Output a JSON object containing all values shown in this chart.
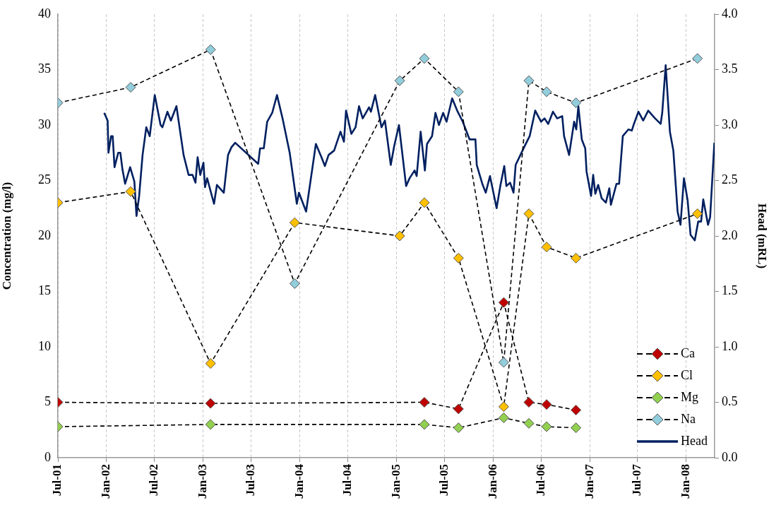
{
  "chart_data": {
    "type": "line",
    "xlabel": null,
    "ylabel": "Concentration (mg/l)",
    "y2label": "Head (mRL)",
    "xlim": [
      "2001-07-01",
      "2008-04-17"
    ],
    "xticks": [
      {
        "value": "2001-07-01",
        "label": "Jul-01"
      },
      {
        "value": "2002-01-01",
        "label": "Jan-02"
      },
      {
        "value": "2002-07-01",
        "label": "Jul-02"
      },
      {
        "value": "2003-01-01",
        "label": "Jan-03"
      },
      {
        "value": "2003-07-01",
        "label": "Jul-03"
      },
      {
        "value": "2004-01-01",
        "label": "Jan-04"
      },
      {
        "value": "2004-07-01",
        "label": "Jul-04"
      },
      {
        "value": "2005-01-01",
        "label": "Jan-05"
      },
      {
        "value": "2005-07-01",
        "label": "Jul-05"
      },
      {
        "value": "2006-01-01",
        "label": "Jan-06"
      },
      {
        "value": "2006-07-01",
        "label": "Jul-06"
      },
      {
        "value": "2007-01-01",
        "label": "Jan-07"
      },
      {
        "value": "2007-07-01",
        "label": "Jul-07"
      },
      {
        "value": "2008-01-01",
        "label": "Jan-08"
      }
    ],
    "ylim": [
      0,
      40
    ],
    "yticks": [
      0,
      5,
      10,
      15,
      20,
      25,
      30,
      35,
      40
    ],
    "y2lim": [
      0,
      4
    ],
    "y2ticks": [
      {
        "value": 0,
        "label": "0.0"
      },
      {
        "value": 0.5,
        "label": "0.5"
      },
      {
        "value": 1,
        "label": "1.0"
      },
      {
        "value": 1.5,
        "label": "1.5"
      },
      {
        "value": 2,
        "label": "2.0"
      },
      {
        "value": 2.5,
        "label": "2.5"
      },
      {
        "value": 3,
        "label": "3.0"
      },
      {
        "value": 3.5,
        "label": "3.5"
      },
      {
        "value": 4,
        "label": "4.0"
      }
    ],
    "grid": "x",
    "legend": "bottom right",
    "marker": "diamond",
    "line_style": "dashed",
    "series": [
      {
        "name": "Ca",
        "color": "#c00000",
        "x": [
          "2001-07-01",
          "2003-01-29",
          "2005-04-16",
          "2005-08-23",
          "2006-02-10",
          "2006-05-16",
          "2006-07-22",
          "2006-11-10"
        ],
        "values": [
          5,
          4.9,
          5,
          4.4,
          14,
          5,
          4.8,
          4.3
        ]
      },
      {
        "name": "Cl",
        "color": "#ffc000",
        "x": [
          "2001-07-01",
          "2002-04-02",
          "2003-01-29",
          "2003-12-13",
          "2005-01-13",
          "2005-04-16",
          "2005-08-23",
          "2006-02-10",
          "2006-05-16",
          "2006-07-22",
          "2006-11-10",
          "2008-02-12"
        ],
        "values": [
          23,
          24,
          8.5,
          21.2,
          20,
          23,
          18,
          4.6,
          22,
          19,
          18,
          22
        ]
      },
      {
        "name": "Mg",
        "color": "#92d050",
        "x": [
          "2001-07-01",
          "2003-01-29",
          "2005-04-16",
          "2005-08-23",
          "2006-02-10",
          "2006-05-16",
          "2006-07-22",
          "2006-11-10"
        ],
        "values": [
          2.8,
          3,
          3,
          2.7,
          3.6,
          3.1,
          2.8,
          2.7
        ]
      },
      {
        "name": "Na",
        "color": "#92cddc",
        "x": [
          "2001-07-01",
          "2002-04-02",
          "2003-01-29",
          "2003-12-13",
          "2005-01-13",
          "2005-04-16",
          "2005-08-23",
          "2006-02-10",
          "2006-05-16",
          "2006-07-22",
          "2006-11-10",
          "2008-02-12"
        ],
        "values": [
          32,
          33.4,
          36.8,
          15.7,
          34,
          36,
          33,
          8.6,
          34,
          33,
          32,
          36
        ]
      },
      {
        "name": "Head",
        "color": "#002060",
        "axis": "y2",
        "marker": "none",
        "line_style": "solid",
        "x": [
          "2001-12-23",
          "2002-01-05",
          "2002-01-08",
          "2002-01-18",
          "2002-01-24",
          "2002-01-31",
          "2002-02-14",
          "2002-02-22",
          "2002-03-02",
          "2002-03-12",
          "2002-03-31",
          "2002-04-16",
          "2002-04-24",
          "2002-05-04",
          "2002-05-17",
          "2002-05-31",
          "2002-06-13",
          "2002-07-02",
          "2002-07-24",
          "2002-07-31",
          "2002-08-19",
          "2002-09-01",
          "2002-09-22",
          "2002-09-30",
          "2002-10-19",
          "2002-11-07",
          "2002-11-22",
          "2002-12-03",
          "2002-12-11",
          "2002-12-21",
          "2003-01-02",
          "2003-01-08",
          "2003-01-16",
          "2003-02-11",
          "2003-02-22",
          "2003-03-20",
          "2003-04-05",
          "2003-04-18",
          "2003-05-02",
          "2003-07-28",
          "2003-08-04",
          "2003-08-18",
          "2003-08-31",
          "2003-09-19",
          "2003-10-07",
          "2003-10-28",
          "2003-11-24",
          "2003-12-21",
          "2003-12-29",
          "2004-01-25",
          "2004-03-02",
          "2004-03-23",
          "2004-04-05",
          "2004-04-19",
          "2004-05-10",
          "2004-06-03",
          "2004-06-16",
          "2004-06-24",
          "2004-07-14",
          "2004-07-30",
          "2004-08-12",
          "2004-08-26",
          "2004-09-19",
          "2004-09-26",
          "2004-10-12",
          "2004-11-05",
          "2004-11-18",
          "2004-12-10",
          "2004-12-23",
          "2005-01-10",
          "2005-02-06",
          "2005-02-19",
          "2005-03-10",
          "2005-03-18",
          "2005-04-02",
          "2005-04-18",
          "2005-04-26",
          "2005-05-15",
          "2005-05-28",
          "2005-06-10",
          "2005-06-26",
          "2005-07-09",
          "2005-07-30",
          "2005-08-18",
          "2005-09-08",
          "2005-10-04",
          "2005-10-26",
          "2005-10-31",
          "2005-11-21",
          "2005-12-04",
          "2005-12-20",
          "2006-01-14",
          "2006-01-28",
          "2006-02-12",
          "2006-02-20",
          "2006-03-06",
          "2006-03-19",
          "2006-03-27",
          "2006-04-14",
          "2006-04-30",
          "2006-05-19",
          "2006-06-09",
          "2006-07-01",
          "2006-07-14",
          "2006-07-28",
          "2006-08-15",
          "2006-08-31",
          "2006-09-19",
          "2006-09-26",
          "2006-10-15",
          "2006-11-03",
          "2006-11-11",
          "2006-11-19",
          "2006-12-02",
          "2006-12-15",
          "2006-12-20",
          "2007-01-06",
          "2007-01-14",
          "2007-01-22",
          "2007-02-02",
          "2007-02-15",
          "2007-03-03",
          "2007-03-16",
          "2007-03-22",
          "2007-04-12",
          "2007-04-22",
          "2007-05-06",
          "2007-05-27",
          "2007-06-09",
          "2007-06-17",
          "2007-07-04",
          "2007-07-22",
          "2007-08-10",
          "2007-09-05",
          "2007-09-26",
          "2007-10-02",
          "2007-10-15",
          "2007-10-31",
          "2007-11-13",
          "2007-11-29",
          "2007-12-10",
          "2007-12-23",
          "2008-01-06",
          "2008-01-17",
          "2008-02-02",
          "2008-02-15",
          "2008-02-26",
          "2008-03-05",
          "2008-03-23",
          "2008-03-31",
          "2008-04-16"
        ],
        "values": [
          3.11,
          3.04,
          2.75,
          2.9,
          2.9,
          2.62,
          2.75,
          2.75,
          2.6,
          2.47,
          2.62,
          2.49,
          2.18,
          2.36,
          2.73,
          2.98,
          2.9,
          3.27,
          3,
          2.98,
          3.12,
          3.04,
          3.17,
          3.04,
          2.73,
          2.55,
          2.55,
          2.48,
          2.71,
          2.55,
          2.66,
          2.44,
          2.52,
          2.29,
          2.46,
          2.39,
          2.73,
          2.8,
          2.84,
          2.65,
          2.79,
          2.79,
          3.03,
          3.11,
          3.27,
          3.06,
          2.75,
          2.29,
          2.39,
          2.22,
          2.83,
          2.71,
          2.63,
          2.73,
          2.77,
          2.94,
          2.85,
          3.13,
          2.92,
          2.98,
          3.17,
          3.06,
          3.16,
          3.12,
          3.27,
          2.98,
          3.04,
          2.64,
          2.81,
          3,
          2.45,
          2.52,
          2.59,
          2.54,
          2.94,
          2.59,
          2.83,
          2.9,
          3.11,
          3,
          3.11,
          3.03,
          3.24,
          3.13,
          3.03,
          2.87,
          2.87,
          2.64,
          2.47,
          2.39,
          2.54,
          2.25,
          2.45,
          2.63,
          2.45,
          2.48,
          2.39,
          2.64,
          2.73,
          2.81,
          2.9,
          3.13,
          3.03,
          3.06,
          3.01,
          3.12,
          3.06,
          3.08,
          2.9,
          2.73,
          3.03,
          2.96,
          3.17,
          2.87,
          2.79,
          2.58,
          2.36,
          2.55,
          2.38,
          2.46,
          2.34,
          2.3,
          2.43,
          2.28,
          2.47,
          2.47,
          2.9,
          2.96,
          2.95,
          3.01,
          3.12,
          3.04,
          3.13,
          3.06,
          3.01,
          3.11,
          3.54,
          2.94,
          2.77,
          2.22,
          2.1,
          2.52,
          2.32,
          2.01,
          1.96,
          2.13,
          2.13,
          2.33,
          2.1,
          2.17,
          2.84
        ]
      }
    ]
  }
}
